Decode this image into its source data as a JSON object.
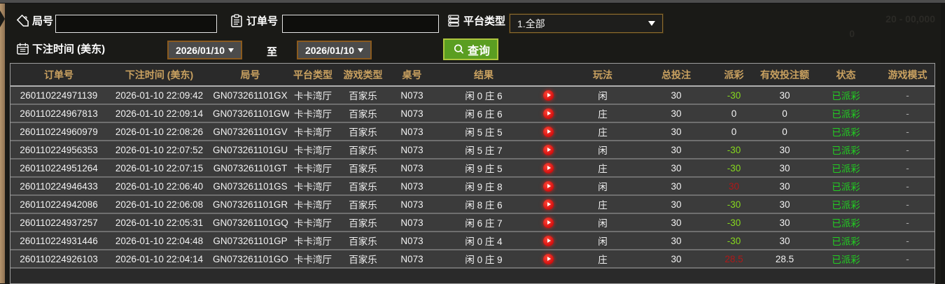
{
  "filters": {
    "round_label": "局号",
    "round_value": "",
    "order_label": "订单号",
    "order_value": "",
    "platform_label": "平台类型",
    "platform_value": "1.全部",
    "time_label": "下注时间 (美东)",
    "date_from": "2026/01/10",
    "to_label": "至",
    "date_to": "2026/01/10",
    "query_label": "查询"
  },
  "watermark": {
    "line1": "20 - 00,000",
    "line2": "0"
  },
  "table": {
    "columns": [
      "订单号",
      "下注时间 (美东)",
      "局号",
      "平台类型",
      "游戏类型",
      "桌号",
      "结果",
      "",
      "玩法",
      "总投注",
      "派彩",
      "有效投注额",
      "状态",
      "游戏模式"
    ],
    "rows": [
      {
        "order": "260110224971139",
        "time": "2026-01-10 22:09:42",
        "round": "GN073261101GX",
        "platform": "卡卡湾厅",
        "game": "百家乐",
        "table_no": "N073",
        "result": "闲 0 庄 6",
        "play": "闲",
        "total": "30",
        "payout": "-30",
        "valid": "30",
        "status": "已派彩",
        "mode": "-"
      },
      {
        "order": "260110224967813",
        "time": "2026-01-10 22:09:14",
        "round": "GN073261101GW",
        "platform": "卡卡湾厅",
        "game": "百家乐",
        "table_no": "N073",
        "result": "闲 6 庄 6",
        "play": "庄",
        "total": "30",
        "payout": "0",
        "valid": "0",
        "status": "已派彩",
        "mode": "-"
      },
      {
        "order": "260110224960979",
        "time": "2026-01-10 22:08:26",
        "round": "GN073261101GV",
        "platform": "卡卡湾厅",
        "game": "百家乐",
        "table_no": "N073",
        "result": "闲 5 庄 5",
        "play": "庄",
        "total": "30",
        "payout": "0",
        "valid": "0",
        "status": "已派彩",
        "mode": "-"
      },
      {
        "order": "260110224956353",
        "time": "2026-01-10 22:07:52",
        "round": "GN073261101GU",
        "platform": "卡卡湾厅",
        "game": "百家乐",
        "table_no": "N073",
        "result": "闲 5 庄 7",
        "play": "闲",
        "total": "30",
        "payout": "-30",
        "valid": "30",
        "status": "已派彩",
        "mode": "-"
      },
      {
        "order": "260110224951264",
        "time": "2026-01-10 22:07:15",
        "round": "GN073261101GT",
        "platform": "卡卡湾厅",
        "game": "百家乐",
        "table_no": "N073",
        "result": "闲 9 庄 5",
        "play": "庄",
        "total": "30",
        "payout": "-30",
        "valid": "30",
        "status": "已派彩",
        "mode": "-"
      },
      {
        "order": "260110224946433",
        "time": "2026-01-10 22:06:40",
        "round": "GN073261101GS",
        "platform": "卡卡湾厅",
        "game": "百家乐",
        "table_no": "N073",
        "result": "闲 9 庄 8",
        "play": "闲",
        "total": "30",
        "payout": "30",
        "valid": "30",
        "status": "已派彩",
        "mode": "-"
      },
      {
        "order": "260110224942086",
        "time": "2026-01-10 22:06:08",
        "round": "GN073261101GR",
        "platform": "卡卡湾厅",
        "game": "百家乐",
        "table_no": "N073",
        "result": "闲 8 庄 6",
        "play": "庄",
        "total": "30",
        "payout": "-30",
        "valid": "30",
        "status": "已派彩",
        "mode": "-"
      },
      {
        "order": "260110224937257",
        "time": "2026-01-10 22:05:31",
        "round": "GN073261101GQ",
        "platform": "卡卡湾厅",
        "game": "百家乐",
        "table_no": "N073",
        "result": "闲 6 庄 7",
        "play": "闲",
        "total": "30",
        "payout": "-30",
        "valid": "30",
        "status": "已派彩",
        "mode": "-"
      },
      {
        "order": "260110224931446",
        "time": "2026-01-10 22:04:48",
        "round": "GN073261101GP",
        "platform": "卡卡湾厅",
        "game": "百家乐",
        "table_no": "N073",
        "result": "闲 0 庄 4",
        "play": "闲",
        "total": "30",
        "payout": "-30",
        "valid": "30",
        "status": "已派彩",
        "mode": "-"
      },
      {
        "order": "260110224926103",
        "time": "2026-01-10 22:04:14",
        "round": "GN073261101GO",
        "platform": "卡卡湾厅",
        "game": "百家乐",
        "table_no": "N073",
        "result": "闲 0 庄 9",
        "play": "庄",
        "total": "30",
        "payout": "28.5",
        "valid": "28.5",
        "status": "已派彩",
        "mode": "-"
      }
    ]
  },
  "colors": {
    "payout_negative": "#86d81e",
    "payout_positive": "#b01818",
    "status_paid": "#21cf21",
    "header_text": "#c9a160",
    "accent_button": "#5a9e21",
    "date_border": "#8a5a1e"
  }
}
